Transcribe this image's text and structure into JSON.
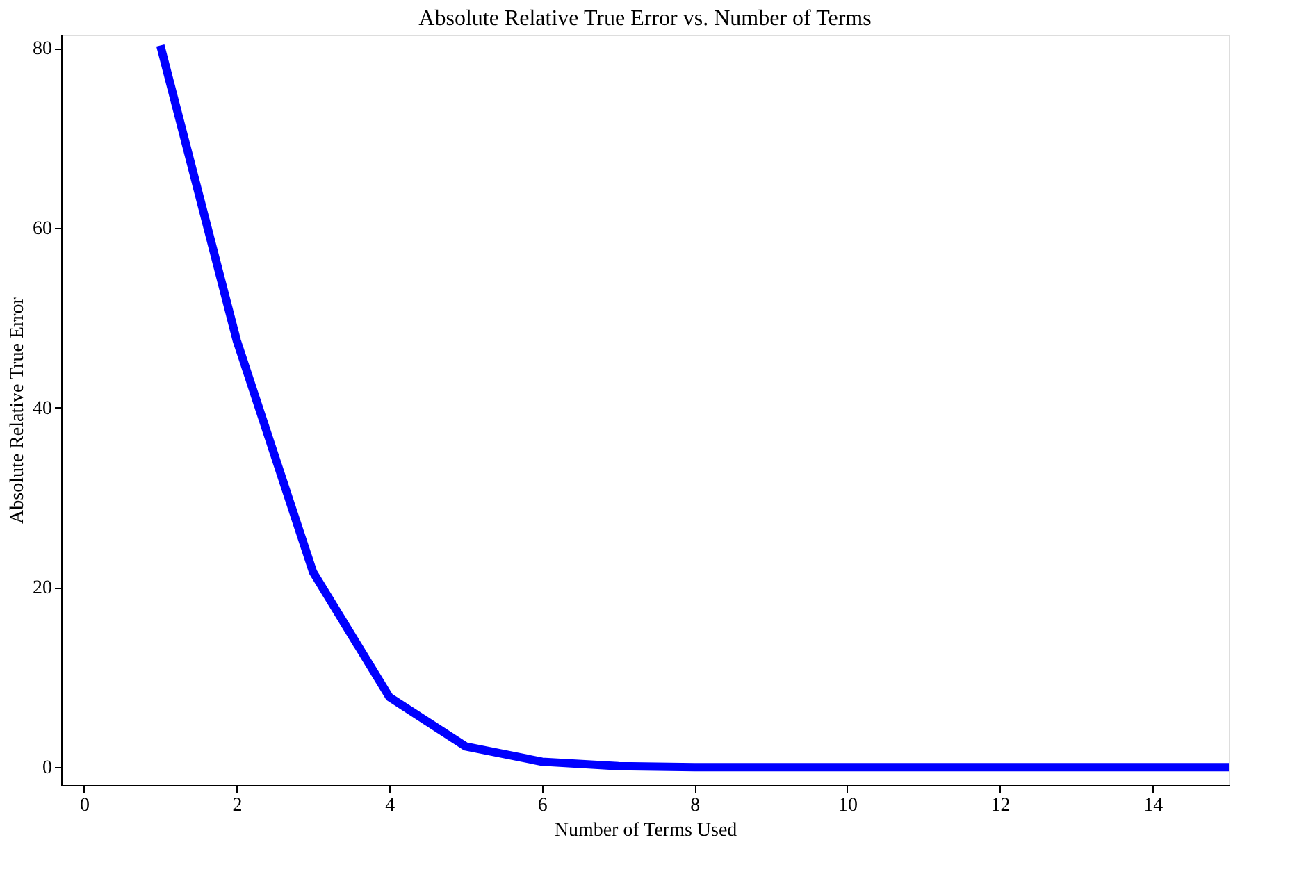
{
  "chart_data": {
    "type": "line",
    "title": "Absolute Relative True Error vs. Number of Terms",
    "xlabel": "Number of Terms Used",
    "ylabel": "Absolute Relative True Error",
    "x": [
      1,
      2,
      3,
      4,
      5,
      6,
      7,
      8,
      9,
      10,
      11,
      12,
      13,
      14,
      15
    ],
    "series": [
      {
        "color": "#0000ff",
        "values": [
          80.3,
          47.5,
          21.7,
          7.8,
          2.3,
          0.6,
          0.1,
          0,
          0,
          0,
          0,
          0,
          0,
          0,
          0
        ]
      }
    ],
    "xlim": [
      -0.3,
      15
    ],
    "ylim": [
      -2,
      81.5
    ],
    "xticks": [
      0,
      2,
      4,
      6,
      8,
      10,
      12,
      14
    ],
    "yticks": [
      0,
      20,
      40,
      60,
      80
    ],
    "grid": false,
    "marker": "none",
    "line_style": "solid"
  }
}
